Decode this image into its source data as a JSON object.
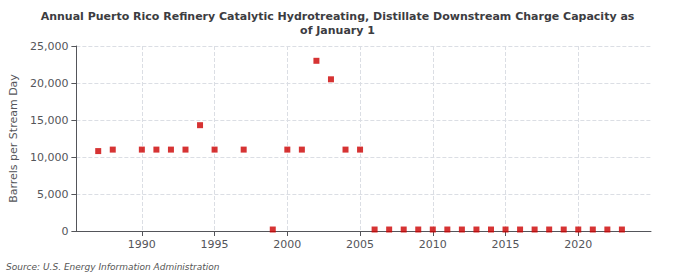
{
  "chart_data": {
    "type": "scatter",
    "title": "Annual Puerto Rico Refinery Catalytic Hydrotreating, Distillate Downstream Charge Capacity as\nof January 1",
    "ylabel": "Barrels per Stream Day",
    "source": "Source: U.S. Energy Information Administration",
    "color": "#cc0000",
    "marker": "square",
    "grid": true,
    "xlim": [
      1985.5,
      2025
    ],
    "ylim": [
      0,
      25000
    ],
    "xticks": [
      1990,
      1995,
      2000,
      2005,
      2010,
      2015,
      2020
    ],
    "yticks": [
      0,
      {
        "value": 5000,
        "label": "5,000"
      },
      {
        "value": 10000,
        "label": "10,000"
      },
      {
        "value": 15000,
        "label": "15,000"
      },
      {
        "value": 20000,
        "label": "20,000"
      },
      {
        "value": 25000,
        "label": "25,000"
      }
    ],
    "x": [
      1987,
      1988,
      1990,
      1991,
      1992,
      1993,
      1994,
      1995,
      1997,
      1999,
      2000,
      2001,
      2002,
      2003,
      2004,
      2005,
      2006,
      2007,
      2008,
      2009,
      2010,
      2011,
      2012,
      2013,
      2014,
      2015,
      2016,
      2017,
      2018,
      2019,
      2020,
      2021,
      2022,
      2023
    ],
    "values": [
      10800,
      11000,
      11000,
      11000,
      11000,
      11000,
      14300,
      11000,
      11000,
      200,
      11000,
      11000,
      23000,
      20500,
      11000,
      11000,
      200,
      200,
      200,
      200,
      200,
      200,
      200,
      200,
      200,
      200,
      200,
      200,
      200,
      200,
      200,
      200,
      200,
      200
    ]
  }
}
